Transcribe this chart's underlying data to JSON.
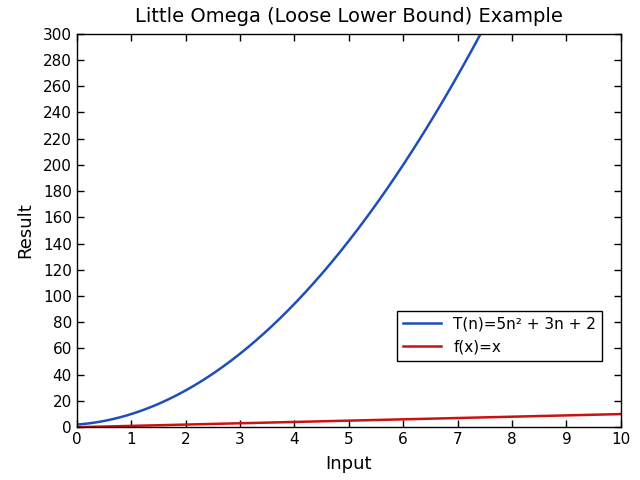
{
  "title": "Little Omega (Loose Lower Bound) Example",
  "xlabel": "Input",
  "ylabel": "Result",
  "xlim": [
    0,
    10
  ],
  "ylim": [
    0,
    300
  ],
  "yticks": [
    0,
    20,
    40,
    60,
    80,
    100,
    120,
    140,
    160,
    180,
    200,
    220,
    240,
    260,
    280,
    300
  ],
  "xticks": [
    0,
    1,
    2,
    3,
    4,
    5,
    6,
    7,
    8,
    9,
    10
  ],
  "line1_label": "T(n)=5n² + 3n + 2",
  "line1_color": "#1f4ebb",
  "line2_label": "f(x)=x",
  "line2_color": "#cc1111",
  "n_points": 1000,
  "background_color": "#ffffff",
  "title_fontsize": 14,
  "axis_label_fontsize": 13,
  "tick_fontsize": 11,
  "legend_fontsize": 11
}
